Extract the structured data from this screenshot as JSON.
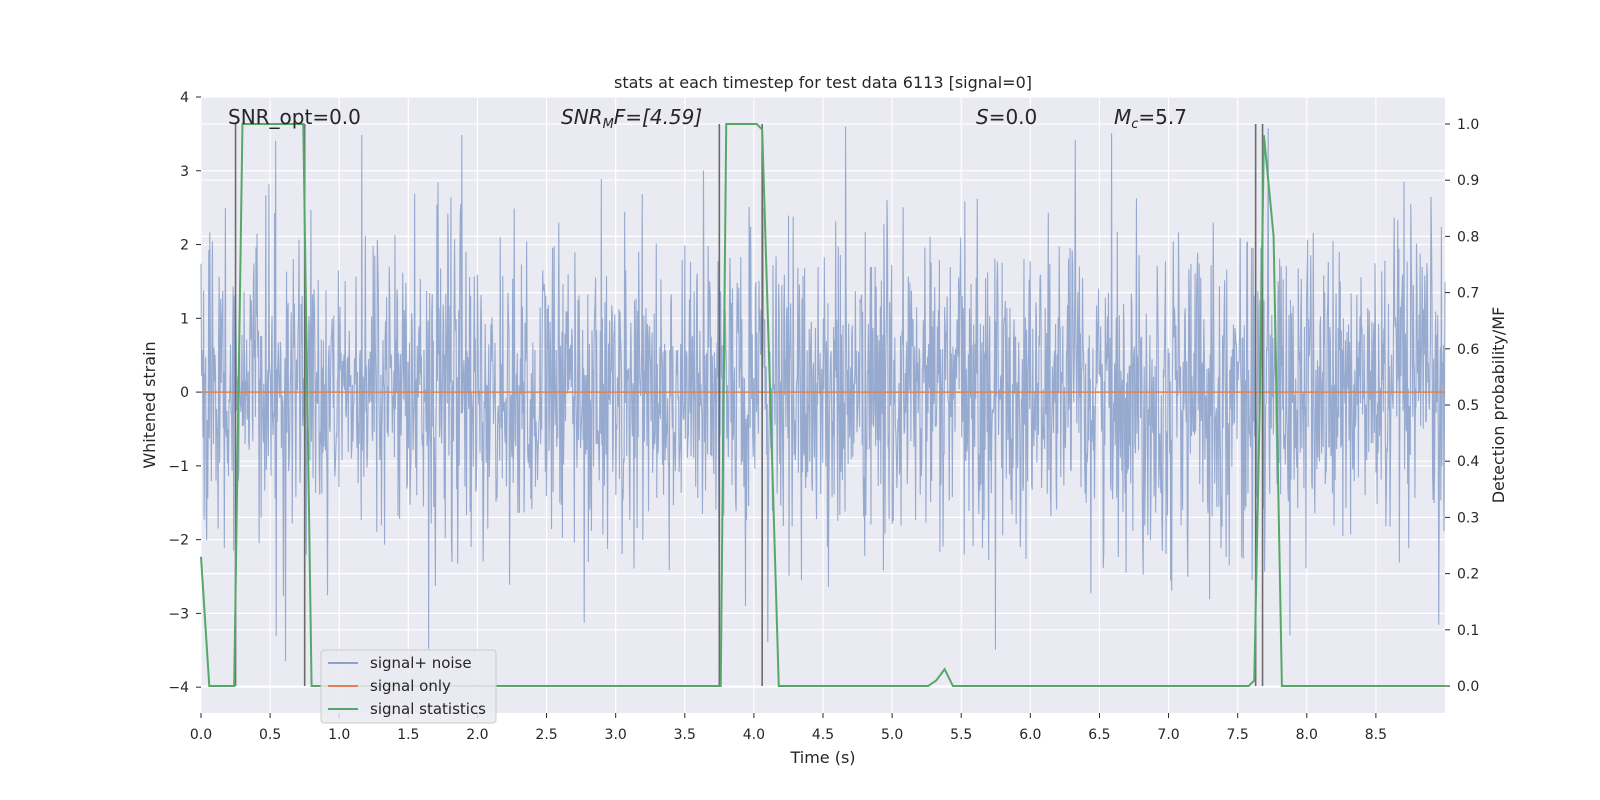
{
  "chart_data": {
    "type": "line",
    "title": "stats at each timestep for test data 6113 [signal=0]",
    "xlabel": "Time (s)",
    "ylabel_left": "Whitened strain",
    "ylabel_right": "Detection probability/MF",
    "xlim": [
      0.0,
      9.0
    ],
    "ylim_left": [
      -4.35,
      4.0
    ],
    "ylim_right": [
      -0.048,
      1.048
    ],
    "x_ticks": [
      "0.0",
      "0.5",
      "1.0",
      "1.5",
      "2.0",
      "2.5",
      "3.0",
      "3.5",
      "4.0",
      "4.5",
      "5.0",
      "5.5",
      "6.0",
      "6.5",
      "7.0",
      "7.5",
      "8.0",
      "8.5"
    ],
    "y_ticks_left": [
      "4",
      "3",
      "2",
      "1",
      "0",
      "−1",
      "−2",
      "−3",
      "−4"
    ],
    "y_ticks_right": [
      "1.0",
      "0.9",
      "0.8",
      "0.7",
      "0.6",
      "0.5",
      "0.4",
      "0.3",
      "0.2",
      "0.1",
      "0.0"
    ],
    "annotations": {
      "snr_opt": "SNR_opt=0.0",
      "snr_mf_main": "SNR",
      "snr_mf_sub": "M",
      "snr_mf_tail": "F=[4.59]",
      "s_main": "S",
      "s_tail": "=0.0",
      "mc_main": "M",
      "mc_sub": "c",
      "mc_tail": "=5.7"
    },
    "legend": {
      "position": "lower-left",
      "entries": [
        "signal+ noise",
        "signal only",
        "signal statistics"
      ]
    },
    "colors": {
      "noise": "#8da2cb",
      "signal_only": "#dd8452",
      "statistics": "#55a868",
      "markers": "#6b6b6b",
      "plot_bg": "#eaeaf2",
      "grid": "#ffffff"
    },
    "series": [
      {
        "name": "signal statistics",
        "axis": "right",
        "x": [
          0.0,
          0.06,
          0.24,
          0.3,
          0.74,
          0.8,
          0.86,
          3.7,
          3.76,
          3.8,
          4.02,
          4.06,
          4.12,
          4.18,
          4.22,
          5.26,
          5.32,
          5.38,
          5.44,
          7.58,
          7.62,
          7.66,
          7.69,
          7.76,
          7.82,
          7.88,
          9.0
        ],
        "values": [
          0.23,
          0.0,
          0.0,
          1.0,
          1.0,
          0.0,
          0.0,
          0.0,
          0.0,
          1.0,
          1.0,
          0.99,
          0.5,
          0.0,
          0.0,
          0.0,
          0.01,
          0.03,
          0.0,
          0.0,
          0.01,
          0.5,
          0.98,
          0.8,
          0.0,
          0.0,
          0.0
        ]
      },
      {
        "name": "signal only",
        "axis": "left",
        "x": [
          0.0,
          9.0
        ],
        "values": [
          0.0,
          0.0
        ]
      },
      {
        "name": "signal+ noise",
        "axis": "left",
        "description": "whitened Gaussian noise, std about 1.0, peaks near +3.6 and -4.0",
        "x_range": [
          0.0,
          9.0
        ]
      }
    ],
    "marker_times": [
      0.25,
      0.75,
      3.75,
      4.06,
      7.63,
      7.68
    ],
    "markers_top": 1.0,
    "markers_bottom": 0.0
  }
}
